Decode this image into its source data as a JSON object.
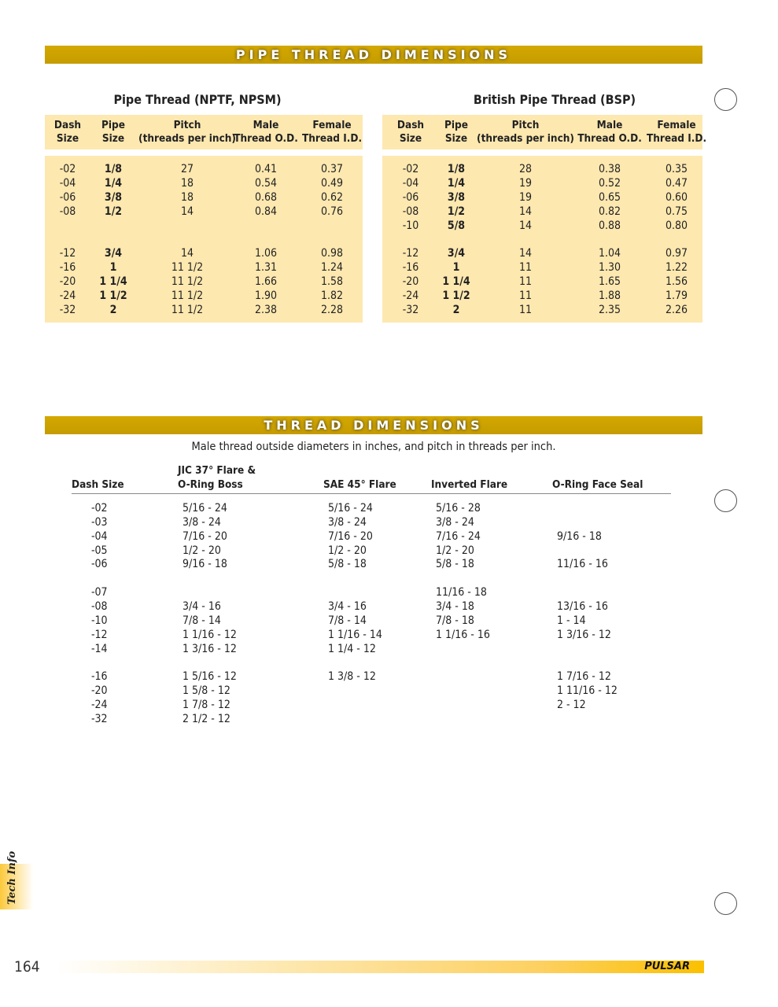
{
  "pipe_section": {
    "banner": "PIPE THREAD DIMENSIONS",
    "npt": {
      "title": "Pipe Thread (NPTF, NPSM)",
      "headers": [
        [
          "Dash",
          "Size"
        ],
        [
          "Pipe",
          "Size"
        ],
        [
          "Pitch",
          "(threads per inch)"
        ],
        [
          "Male",
          "Thread O.D."
        ],
        [
          "Female",
          "Thread I.D."
        ]
      ],
      "rows": [
        [
          "-02",
          "1/8",
          "27",
          "0.41",
          "0.37"
        ],
        [
          "-04",
          "1/4",
          "18",
          "0.54",
          "0.49"
        ],
        [
          "-06",
          "3/8",
          "18",
          "0.68",
          "0.62"
        ],
        [
          "-08",
          "1/2",
          "14",
          "0.84",
          "0.76"
        ],
        [
          "",
          "",
          "",
          "",
          ""
        ],
        [
          "",
          "",
          "",
          "",
          ""
        ],
        [
          "-12",
          "3/4",
          "14",
          "1.06",
          "0.98"
        ],
        [
          "-16",
          "1",
          "11 1/2",
          "1.31",
          "1.24"
        ],
        [
          "-20",
          "1 1/4",
          "11 1/2",
          "1.66",
          "1.58"
        ],
        [
          "-24",
          "1 1/2",
          "11 1/2",
          "1.90",
          "1.82"
        ],
        [
          "-32",
          "2",
          "11 1/2",
          "2.38",
          "2.28"
        ]
      ]
    },
    "bsp": {
      "title": "British Pipe Thread (BSP)",
      "headers": [
        [
          "Dash",
          "Size"
        ],
        [
          "Pipe",
          "Size"
        ],
        [
          "Pitch",
          "(threads per inch)"
        ],
        [
          "Male",
          "Thread O.D."
        ],
        [
          "Female",
          "Thread I.D."
        ]
      ],
      "rows": [
        [
          "-02",
          "1/8",
          "28",
          "0.38",
          "0.35"
        ],
        [
          "-04",
          "1/4",
          "19",
          "0.52",
          "0.47"
        ],
        [
          "-06",
          "3/8",
          "19",
          "0.65",
          "0.60"
        ],
        [
          "-08",
          "1/2",
          "14",
          "0.82",
          "0.75"
        ],
        [
          "-10",
          "5/8",
          "14",
          "0.88",
          "0.80"
        ],
        [
          "",
          "",
          "",
          "",
          ""
        ],
        [
          "-12",
          "3/4",
          "14",
          "1.04",
          "0.97"
        ],
        [
          "-16",
          "1",
          "11",
          "1.30",
          "1.22"
        ],
        [
          "-20",
          "1 1/4",
          "11",
          "1.65",
          "1.56"
        ],
        [
          "-24",
          "1 1/2",
          "11",
          "1.88",
          "1.79"
        ],
        [
          "-32",
          "2",
          "11",
          "2.35",
          "2.26"
        ]
      ]
    }
  },
  "thread_section": {
    "banner": "THREAD DIMENSIONS",
    "subtitle": "Male thread outside diameters in inches, and pitch in threads per inch.",
    "headers": [
      [
        "",
        "Dash Size"
      ],
      [
        "JIC 37° Flare &",
        "O-Ring Boss"
      ],
      [
        "",
        "SAE 45° Flare"
      ],
      [
        "",
        "Inverted Flare"
      ],
      [
        "",
        "O-Ring Face Seal"
      ]
    ],
    "rows": [
      [
        "-02",
        "5/16 - 24",
        "5/16 - 24",
        "5/16 - 28",
        ""
      ],
      [
        "-03",
        "3/8 - 24",
        "3/8 - 24",
        "3/8 - 24",
        ""
      ],
      [
        "-04",
        "7/16 - 20",
        "7/16 - 20",
        "7/16 - 24",
        "9/16 - 18"
      ],
      [
        "-05",
        "1/2 - 20",
        "1/2 - 20",
        "1/2 - 20",
        ""
      ],
      [
        "-06",
        "9/16 - 18",
        "5/8 - 18",
        "5/8 - 18",
        "11/16 - 16"
      ],
      [
        "",
        "",
        "",
        "",
        ""
      ],
      [
        "-07",
        "",
        "",
        "11/16 - 18",
        ""
      ],
      [
        "-08",
        "3/4 - 16",
        "3/4 - 16",
        "3/4 - 18",
        "13/16 - 16"
      ],
      [
        "-10",
        "7/8 - 14",
        "7/8 - 14",
        "7/8 - 18",
        "1 - 14"
      ],
      [
        "-12",
        "1 1/16 - 12",
        "1 1/16 - 14",
        "1 1/16 - 16",
        "1 3/16 - 12"
      ],
      [
        "-14",
        "1 3/16 - 12",
        "1 1/4 - 12",
        "",
        ""
      ],
      [
        "",
        "",
        "",
        "",
        ""
      ],
      [
        "-16",
        "1 5/16 - 12",
        "1 3/8 - 12",
        "",
        "1 7/16 - 12"
      ],
      [
        "-20",
        "1 5/8 - 12",
        "",
        "",
        "1 11/16 - 12"
      ],
      [
        "-24",
        "1 7/8 - 12",
        "",
        "",
        "2 - 12"
      ],
      [
        "-32",
        "2 1/2 - 12",
        "",
        "",
        ""
      ]
    ]
  },
  "side_tab": "Tech Info",
  "page_number": "164",
  "brand": "PULSAR"
}
